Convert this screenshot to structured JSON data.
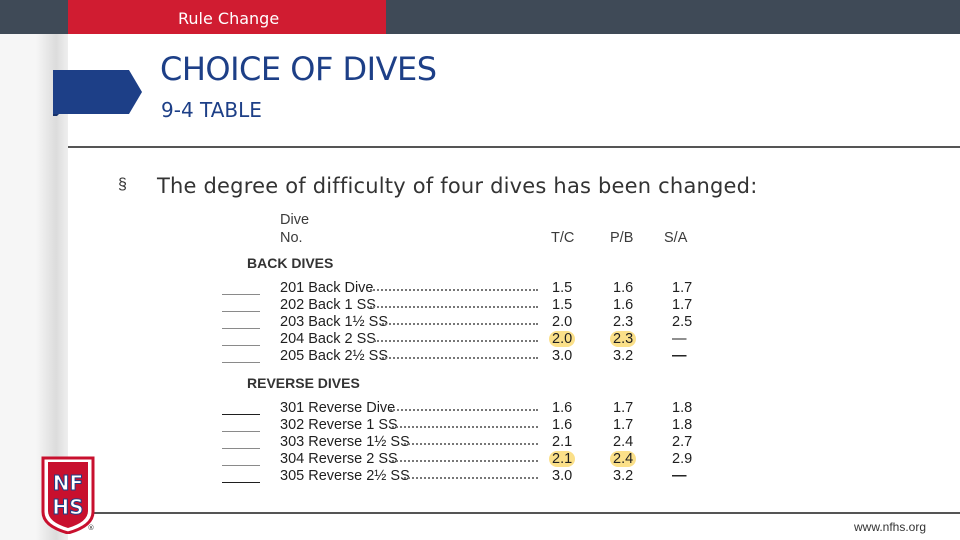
{
  "header": {
    "tag": "Rule Change"
  },
  "slide": {
    "title": "CHOICE OF DIVES",
    "subtitle": "9-4 TABLE",
    "bullet_symbol": "§",
    "bullet": "The degree of difficulty of four dives has been changed:"
  },
  "table": {
    "head_dive": "Dive",
    "head_no": "No.",
    "col_tc": "T/C",
    "col_pb": "P/B",
    "col_sa": "S/A",
    "sections": [
      {
        "name": "BACK DIVES",
        "rows": [
          {
            "name": "201 Back Dive",
            "tc": "1.5",
            "pb": "1.6",
            "sa": "1.7",
            "hl": false
          },
          {
            "name": "202 Back 1 SS",
            "tc": "1.5",
            "pb": "1.6",
            "sa": "1.7",
            "hl": false
          },
          {
            "name": "203 Back 1½ SS",
            "tc": "2.0",
            "pb": "2.3",
            "sa": "2.5",
            "hl": false
          },
          {
            "name": "204 Back 2 SS",
            "tc": "2.0",
            "pb": "2.3",
            "sa": "—",
            "hl": true
          },
          {
            "name": "205 Back 2½ SS",
            "tc": "3.0",
            "pb": "3.2",
            "sa": "—",
            "hl": false
          }
        ]
      },
      {
        "name": "REVERSE DIVES",
        "rows": [
          {
            "name": "301 Reverse Dive",
            "tc": "1.6",
            "pb": "1.7",
            "sa": "1.8",
            "hl": false
          },
          {
            "name": "302 Reverse 1 SS",
            "tc": "1.6",
            "pb": "1.7",
            "sa": "1.8",
            "hl": false
          },
          {
            "name": "303 Reverse 1½ SS",
            "tc": "2.1",
            "pb": "2.4",
            "sa": "2.7",
            "hl": false
          },
          {
            "name": "304 Reverse 2 SS",
            "tc": "2.1",
            "pb": "2.4",
            "sa": "2.9",
            "hl": true
          },
          {
            "name": "305 Reverse 2½ SS",
            "tc": "3.0",
            "pb": "3.2",
            "sa": "—",
            "hl": false
          }
        ]
      }
    ]
  },
  "footer": {
    "logo_text": "NFHS",
    "logo_mark": "®",
    "url": "www.nfhs.org"
  },
  "colors": {
    "topbar": "#3f4a57",
    "accent_red": "#d01c31",
    "title_blue": "#1d3f87",
    "highlight": "#fbe089"
  }
}
